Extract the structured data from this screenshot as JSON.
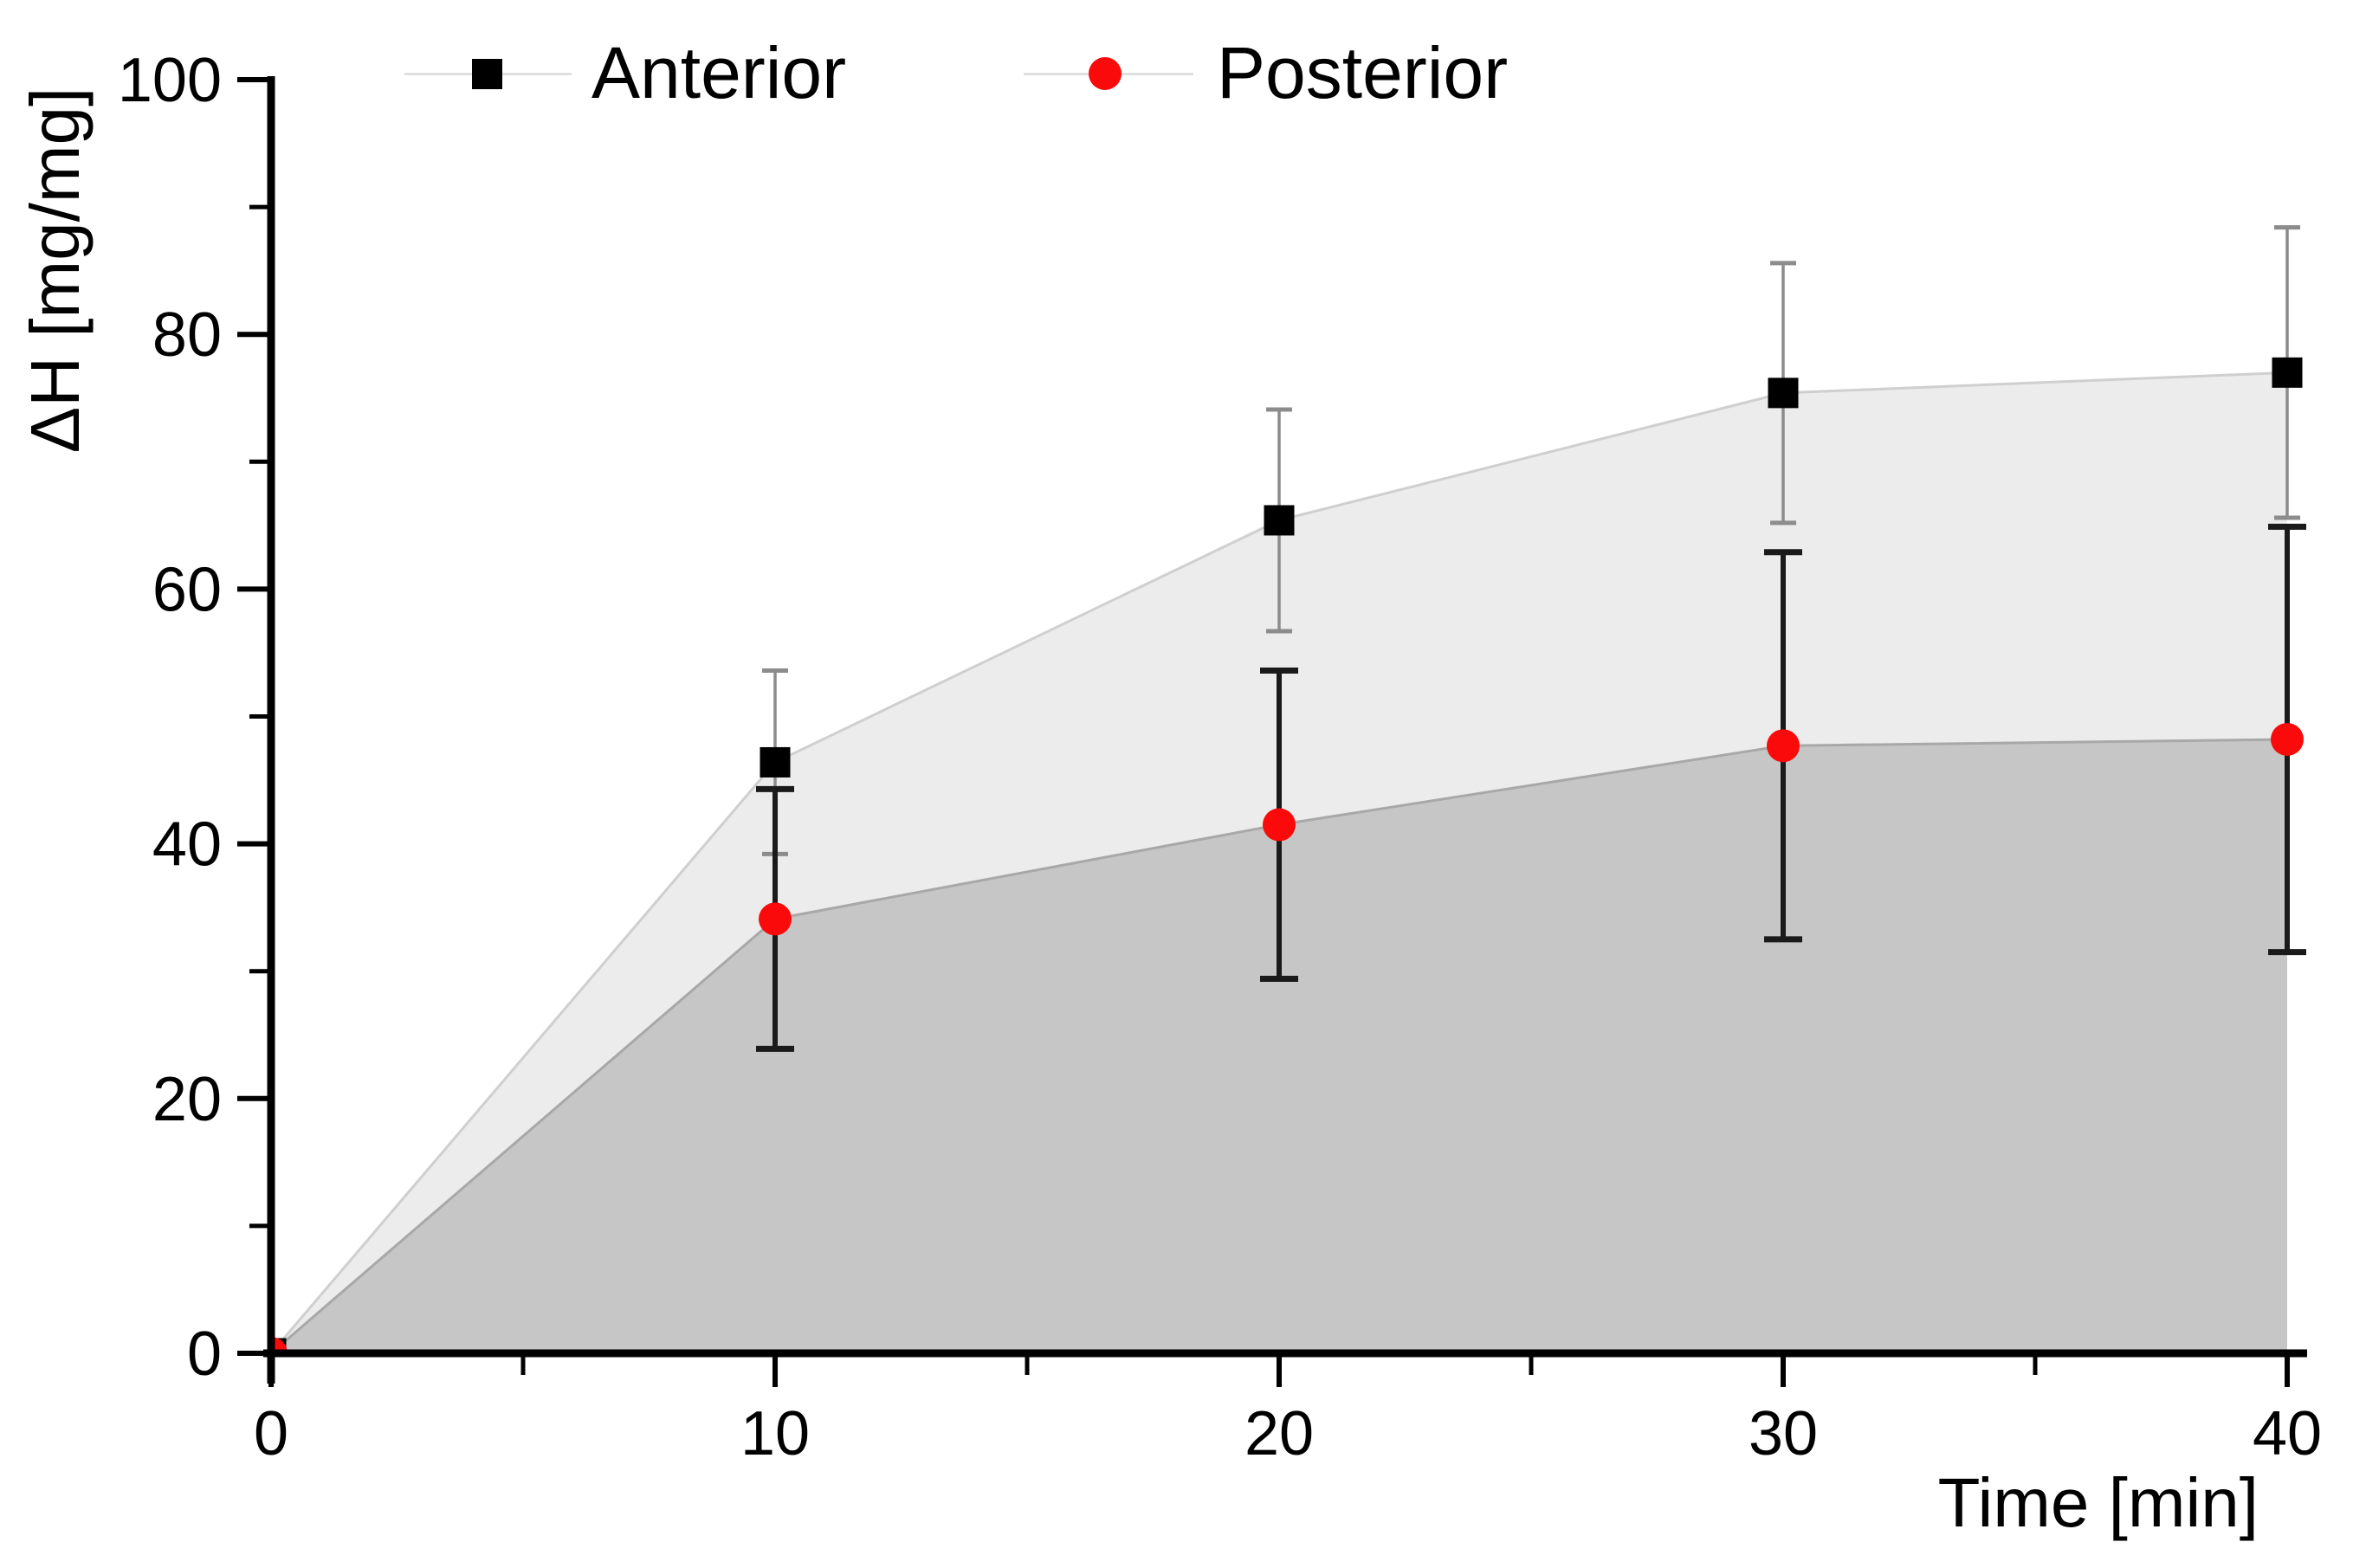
{
  "chart_data": {
    "type": "area",
    "description": "Line/scatter plot with error bars and filled areas under each series",
    "x": [
      0,
      10,
      20,
      30,
      40
    ],
    "series": [
      {
        "name": "Anterior",
        "values": [
          0,
          46.4,
          65.4,
          75.4,
          77.0
        ],
        "errors": [
          0,
          7.2,
          8.7,
          10.2,
          11.4
        ],
        "marker": "square",
        "marker_color": "#000000",
        "fill_color": "#ececec",
        "line_color": "#cfcfcf",
        "errorbar_color": "#8c8c8c"
      },
      {
        "name": "Posterior",
        "values": [
          0,
          34.1,
          41.5,
          47.7,
          48.2
        ],
        "errors": [
          0,
          10.2,
          12.1,
          15.2,
          16.7
        ],
        "marker": "circle",
        "marker_color": "#fa0a0a",
        "fill_color": "#c6c6c6",
        "line_color": "#a8a8a8",
        "errorbar_color": "#1a1a1a"
      }
    ],
    "xlabel": "Time [min]",
    "ylabel": "ΔH [mg/mg]",
    "xlim": [
      0,
      40
    ],
    "ylim": [
      0,
      100
    ],
    "x_ticks": [
      0,
      10,
      20,
      30,
      40
    ],
    "x_minor_ticks": [
      5,
      15,
      25,
      35
    ],
    "y_ticks": [
      0,
      20,
      40,
      60,
      80,
      100
    ],
    "y_minor_ticks": [
      10,
      30,
      50,
      70,
      90
    ],
    "grid": false,
    "legend_position": "top-center",
    "legend_line_color": "#e0e0e0",
    "axis_color": "#000000"
  }
}
